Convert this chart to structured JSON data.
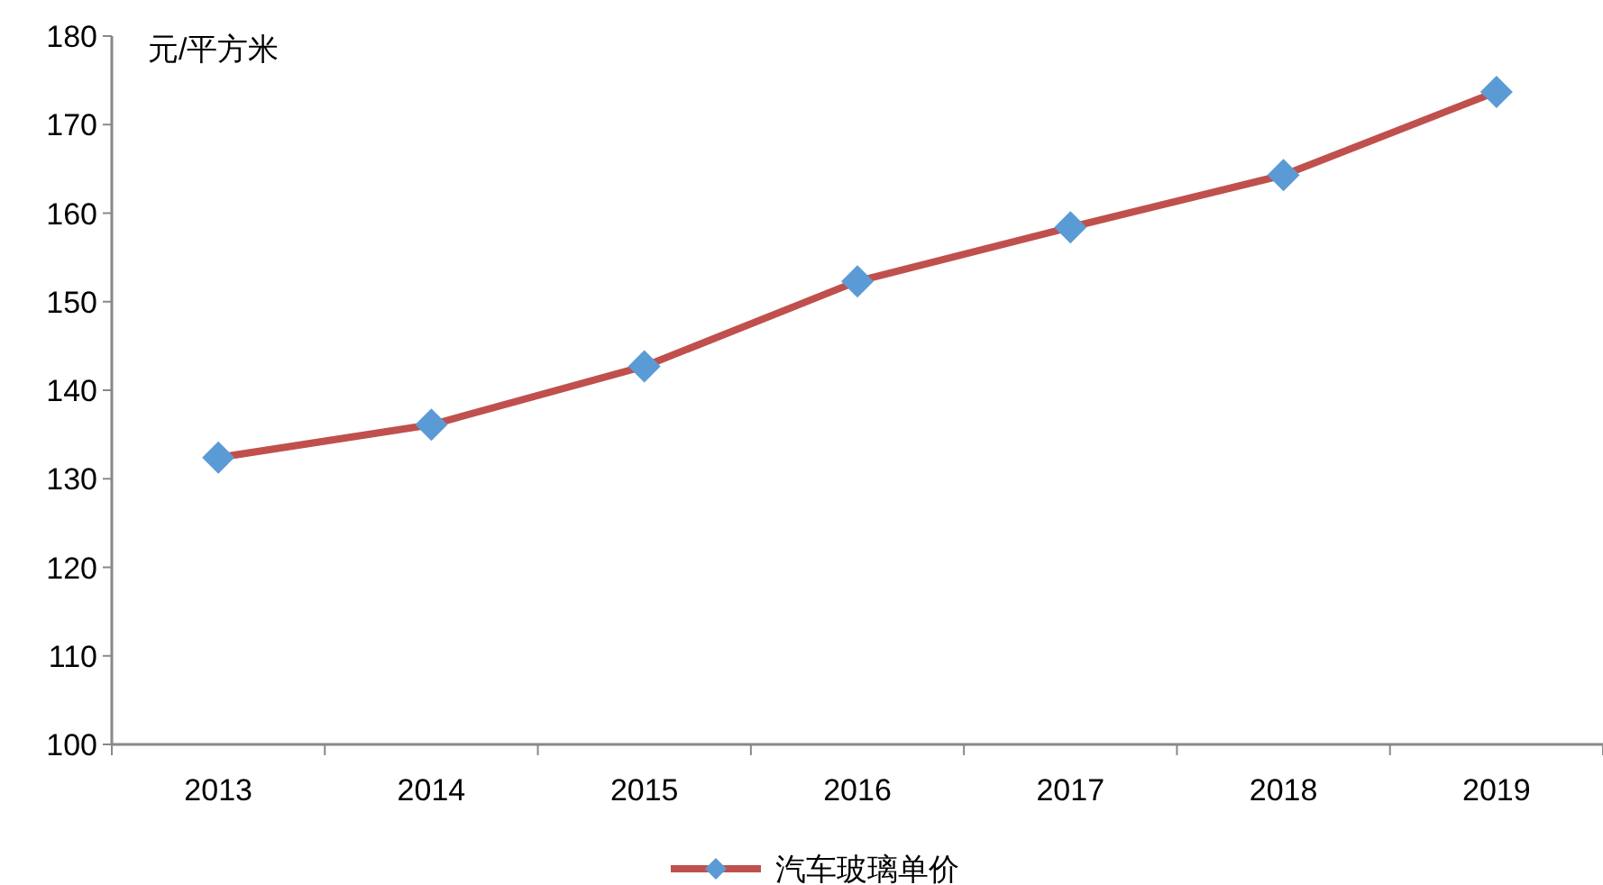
{
  "chart_data": {
    "type": "line",
    "ylabel": "元/平方米",
    "categories": [
      "2013",
      "2014",
      "2015",
      "2016",
      "2017",
      "2018",
      "2019"
    ],
    "series": [
      {
        "name": "汽车玻璃单价",
        "color": "#c0504d",
        "colors": [
          "#5b9bd5",
          "#5b9bd5",
          "#5b9bd5",
          "#5b9bd5",
          "#5b9bd5",
          "#5b9bd5",
          "#5b9bd5"
        ],
        "values": [
          132.4,
          136.1,
          142.7,
          152.3,
          158.4,
          164.3,
          173.7
        ]
      }
    ],
    "ylim": [
      100,
      180
    ],
    "yticks": [
      100,
      110,
      120,
      130,
      140,
      150,
      160,
      170,
      180
    ],
    "grid": false,
    "legend": "bottom",
    "marker": "diamond",
    "line_style": "solid"
  }
}
